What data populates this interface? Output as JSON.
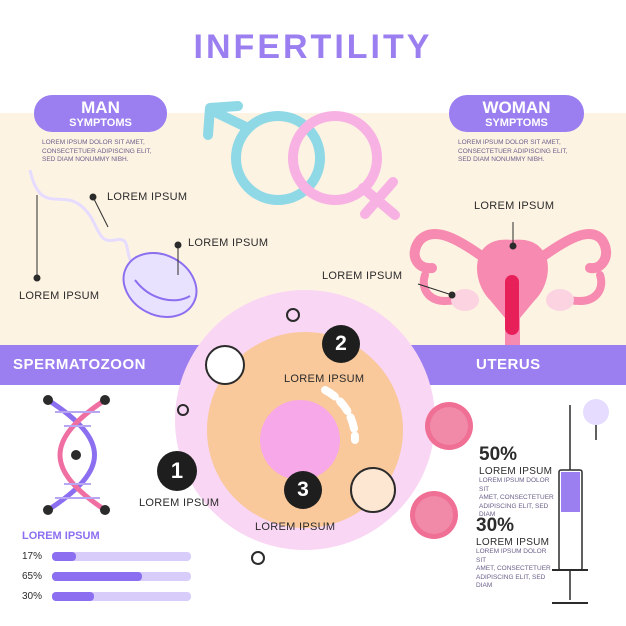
{
  "title": "INFERTILITY",
  "man": {
    "title": "MAN",
    "subtitle": "SYMPTOMS",
    "desc": [
      "LOREM IPSUM DOLOR SIT AMET,",
      "CONSECTETUER ADIPISCING ELIT,",
      "SED DIAM NONUMMY NIBH."
    ]
  },
  "woman": {
    "title": "WOMAN",
    "subtitle": "SYMPTOMS",
    "desc": [
      "LOREM IPSUM DOLOR SIT AMET,",
      "CONSECTETUER ADIPISCING ELIT,",
      "SED DIAM NONUMMY NIBH."
    ]
  },
  "sperm_labels": [
    "LOREM IPSUM",
    "LOREM IPSUM",
    "LOREM IPSUM"
  ],
  "uterus_labels": [
    "LOREM IPSUM",
    "LOREM IPSUM"
  ],
  "bands": {
    "left": "SPERMATOZOON",
    "right": "UTERUS"
  },
  "steps": [
    {
      "num": "1",
      "label": "LOREM IPSUM"
    },
    {
      "num": "2",
      "label": "LOREM IPSUM"
    },
    {
      "num": "3",
      "label": "LOREM IPSUM"
    }
  ],
  "stats": [
    {
      "value": "50%",
      "label": "LOREM IPSUM",
      "desc": [
        "LOREM IPSUM DOLOR SIT",
        "AMET, CONSECTETUER",
        "ADIPISCING ELIT, SED DIAM"
      ]
    },
    {
      "value": "30%",
      "label": "LOREM IPSUM",
      "desc": [
        "LOREM IPSUM DOLOR SIT",
        "AMET, CONSECTETUER",
        "ADIPISCING ELIT, SED DIAM"
      ]
    }
  ],
  "bars": {
    "title": "LOREM IPSUM",
    "items": [
      {
        "label": "17%",
        "value": 0.17
      },
      {
        "label": "65%",
        "value": 0.65
      },
      {
        "label": "30%",
        "value": 0.3
      }
    ]
  },
  "colors": {
    "accent": "#9b7ef0",
    "pink": "#f06fa3",
    "light_blue": "#8fd8e6",
    "peach": "#f9c89b",
    "cream": "#fdf3e3"
  },
  "icons": [
    "male-symbol-icon",
    "female-symbol-icon",
    "dna-icon",
    "syringe-icon",
    "sperm-icon",
    "uterus-icon",
    "cell-icon"
  ]
}
